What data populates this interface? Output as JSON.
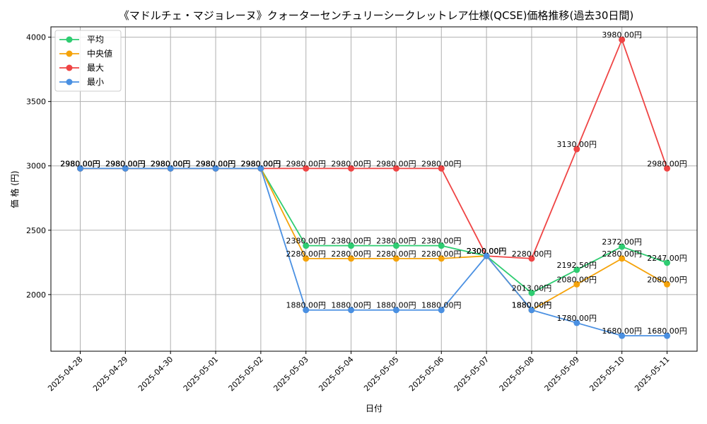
{
  "chart_data": {
    "type": "line",
    "title": "《マドルチェ・マジョレーヌ》クォーターセンチュリーシークレットレア仕様(QCSE)価格推移(過去30日間)",
    "xlabel": "日付",
    "ylabel": "価 格 (円)",
    "ylim": [
      1560,
      4080
    ],
    "yticks": [
      2000,
      2500,
      3000,
      3500,
      4000
    ],
    "grid": true,
    "legend_position": "top-left",
    "categories": [
      "2025-04-28",
      "2025-04-29",
      "2025-04-30",
      "2025-05-01",
      "2025-05-02",
      "2025-05-03",
      "2025-05-04",
      "2025-05-05",
      "2025-05-06",
      "2025-05-07",
      "2025-05-08",
      "2025-05-09",
      "2025-05-10",
      "2025-05-11"
    ],
    "series": [
      {
        "name": "平均",
        "color": "#2ecc71",
        "values": [
          2980,
          2980,
          2980,
          2980,
          2980,
          2380,
          2380,
          2380,
          2380,
          2300,
          2013,
          2192.5,
          2372,
          2247
        ]
      },
      {
        "name": "中央値",
        "color": "#f5a30a",
        "values": [
          2980,
          2980,
          2980,
          2980,
          2980,
          2280,
          2280,
          2280,
          2280,
          2300,
          1880,
          2080,
          2280,
          2080
        ]
      },
      {
        "name": "最大",
        "color": "#ef4444",
        "values": [
          2980,
          2980,
          2980,
          2980,
          2980,
          2980,
          2980,
          2980,
          2980,
          2300,
          2280,
          3130,
          3980,
          2980
        ]
      },
      {
        "name": "最小",
        "color": "#4a90e2",
        "values": [
          2980,
          2980,
          2980,
          2980,
          2980,
          1880,
          1880,
          1880,
          1880,
          2300,
          1880,
          1780,
          1680,
          1680
        ]
      }
    ],
    "value_suffix": "円"
  }
}
